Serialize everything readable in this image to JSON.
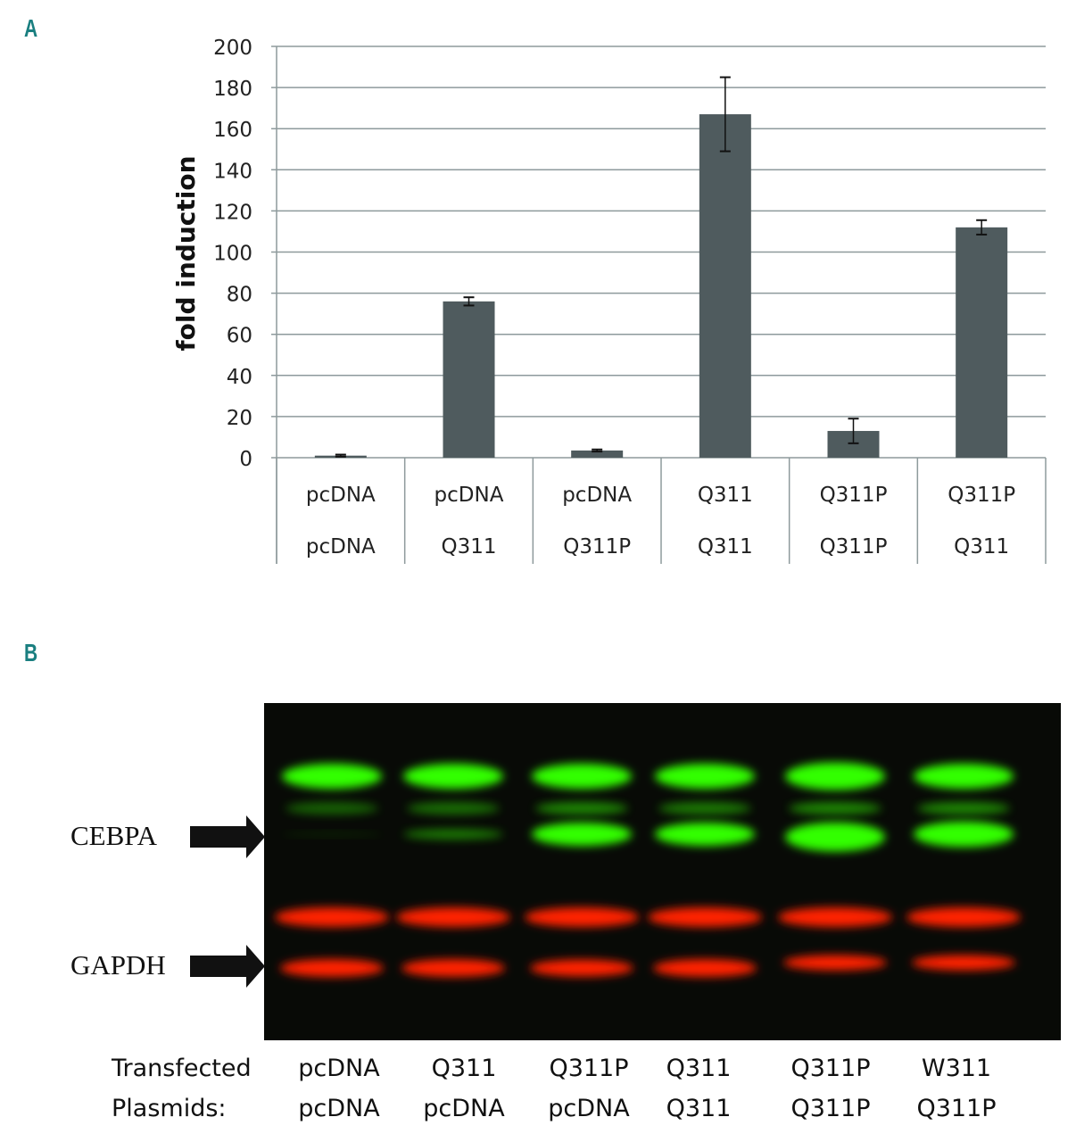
{
  "panels": {
    "a": "A",
    "b": "B"
  },
  "chart_data": {
    "type": "bar",
    "ylabel": "fold induction",
    "xlabel": "",
    "ylim": [
      0,
      200
    ],
    "yticks": [
      0,
      20,
      40,
      60,
      80,
      100,
      120,
      140,
      160,
      180,
      200
    ],
    "grid": true,
    "categories": [
      [
        "pcDNA",
        "pcDNA"
      ],
      [
        "pcDNA",
        "Q311"
      ],
      [
        "pcDNA",
        "Q311P"
      ],
      [
        "Q311",
        "Q311"
      ],
      [
        "Q311P",
        "Q311P"
      ],
      [
        "Q311P",
        "Q311"
      ]
    ],
    "values": [
      1,
      76,
      3.5,
      167,
      13,
      112
    ],
    "error": [
      0.5,
      2,
      0.5,
      18,
      6,
      3.5
    ],
    "bar_color": "#4f5b5e"
  },
  "blot": {
    "labels": {
      "cebpa": "CEBPA",
      "gapdh": "GAPDH"
    },
    "row_header": [
      "Transfected",
      "Plasmids:"
    ],
    "lanes": [
      [
        "pcDNA",
        "pcDNA"
      ],
      [
        "Q311",
        "pcDNA"
      ],
      [
        "Q311P",
        "pcDNA"
      ],
      [
        "Q311",
        "Q311"
      ],
      [
        "Q311P",
        "Q311P"
      ],
      [
        "W311",
        "Q311P"
      ]
    ],
    "colors": {
      "green": "#33ff00",
      "red": "#ff2200",
      "background": "#080a06"
    }
  }
}
